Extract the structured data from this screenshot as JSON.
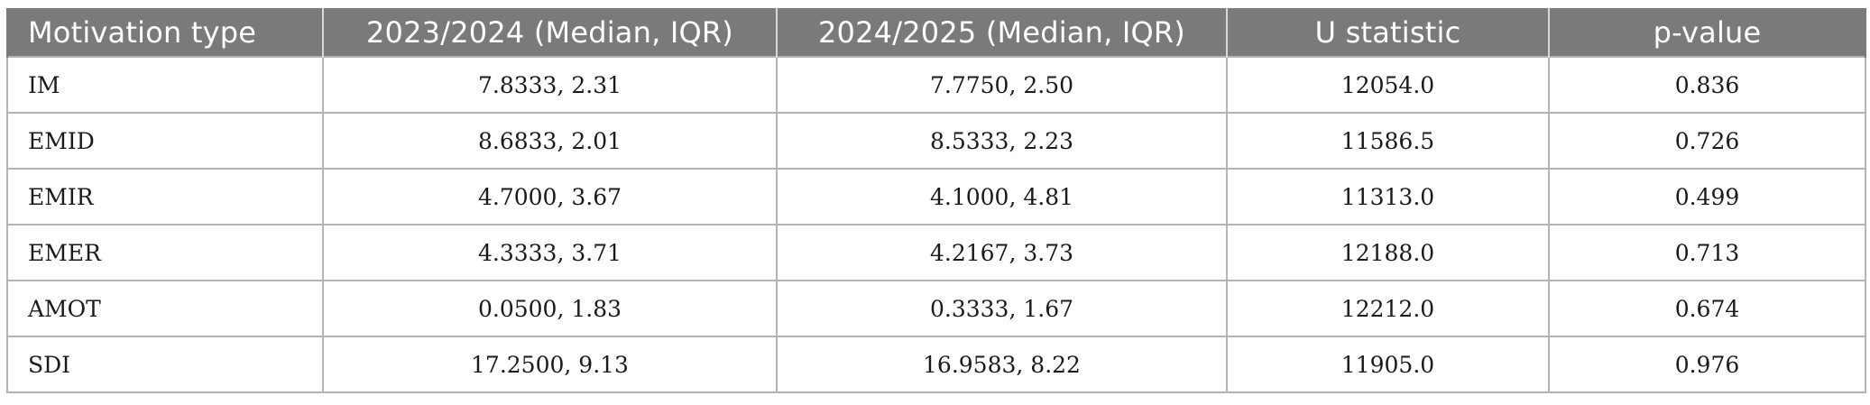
{
  "table": {
    "headers": [
      "Motivation type",
      "2023/2024 (Median, IQR)",
      "2024/2025 (Median, IQR)",
      "U statistic",
      "p-value"
    ],
    "rows": [
      [
        "IM",
        "7.8333, 2.31",
        "7.7750, 2.50",
        "12054.0",
        "0.836"
      ],
      [
        "EMID",
        "8.6833, 2.01",
        "8.5333, 2.23",
        "11586.5",
        "0.726"
      ],
      [
        "EMIR",
        "4.7000, 3.67",
        "4.1000, 4.81",
        "11313.0",
        "0.499"
      ],
      [
        "EMER",
        "4.3333, 3.71",
        "4.2167, 3.73",
        "12188.0",
        "0.713"
      ],
      [
        "AMOT",
        "0.0500, 1.83",
        "0.3333, 1.67",
        "12212.0",
        "0.674"
      ],
      [
        "SDI",
        "17.2500, 9.13",
        "16.9583, 8.22",
        "11905.0",
        "0.976"
      ]
    ]
  },
  "colors": {
    "header_bg": "#7a7a7a",
    "header_text": "#ffffff",
    "grid": "#b3b3b3"
  }
}
